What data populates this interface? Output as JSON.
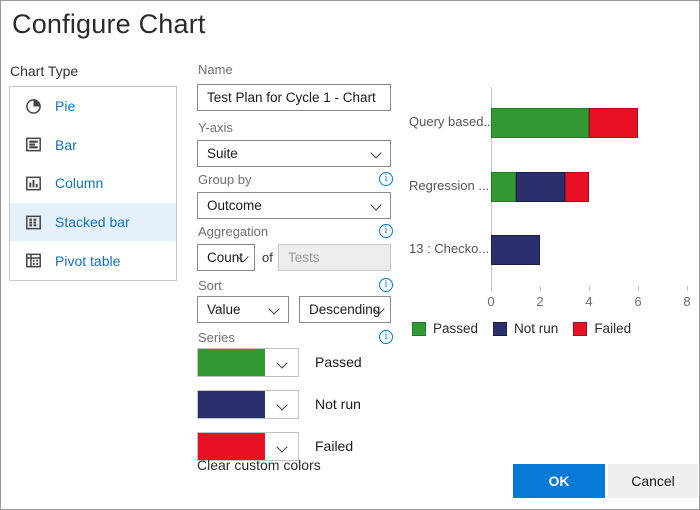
{
  "dialog": {
    "title": "Configure Chart"
  },
  "chart_type": {
    "label": "Chart Type",
    "options": [
      {
        "label": "Pie",
        "icon": "pie-chart-icon",
        "selected": false
      },
      {
        "label": "Bar",
        "icon": "bar-chart-icon",
        "selected": false
      },
      {
        "label": "Column",
        "icon": "column-chart-icon",
        "selected": false
      },
      {
        "label": "Stacked bar",
        "icon": "stacked-bar-chart-icon",
        "selected": true
      },
      {
        "label": "Pivot table",
        "icon": "pivot-table-icon",
        "selected": false
      }
    ]
  },
  "form": {
    "name": {
      "label": "Name",
      "value": "Test Plan for Cycle 1 - Chart"
    },
    "y_axis": {
      "label": "Y-axis",
      "value": "Suite"
    },
    "group_by": {
      "label": "Group by",
      "value": "Outcome"
    },
    "aggregation": {
      "label": "Aggregation",
      "value": "Count",
      "of_label": "of",
      "field_value": "Tests",
      "field_disabled": true
    },
    "sort": {
      "label": "Sort",
      "value": "Value",
      "order": "Descending"
    },
    "series": {
      "label": "Series",
      "items": [
        {
          "label": "Passed",
          "color": "#339933"
        },
        {
          "label": "Not run",
          "color": "#2a2f6c"
        },
        {
          "label": "Failed",
          "color": "#e81123"
        }
      ]
    },
    "clear_colors_label": "Clear custom colors"
  },
  "chart_data": {
    "type": "bar",
    "orientation": "horizontal",
    "stacked": true,
    "categories": [
      "Query based...",
      "Regression ...",
      "13 : Checko..."
    ],
    "series": [
      {
        "name": "Passed",
        "color": "#339933",
        "border": "#1e7a2a",
        "values": [
          4,
          1,
          0
        ]
      },
      {
        "name": "Not run",
        "color": "#2a2f6c",
        "border": "#191d4a",
        "values": [
          0,
          2,
          2
        ]
      },
      {
        "name": "Failed",
        "color": "#e81123",
        "border": "#a60d1a",
        "values": [
          2,
          1,
          0
        ]
      }
    ],
    "xlim": [
      0,
      8
    ],
    "x_ticks": [
      0,
      2,
      4,
      6,
      8
    ],
    "legend": [
      "Passed",
      "Not run",
      "Failed"
    ],
    "legend_position": "bottom",
    "grid": false
  },
  "buttons": {
    "ok": "OK",
    "cancel": "Cancel"
  },
  "colors": {
    "accent_blue": "#0779d6",
    "link_blue": "#1072c6",
    "selected_row_bg": "#e4f1fb"
  }
}
